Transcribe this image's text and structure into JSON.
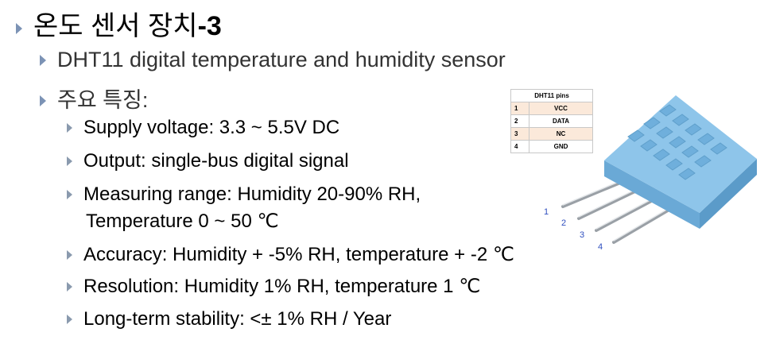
{
  "slide": {
    "title_korean": "온도 센서 장치",
    "title_suffix": "-3",
    "item_model": "DHT11 digital temperature and humidity sensor",
    "item_features": "주요 특징:",
    "bullets": [
      "Supply voltage: 3.3 ~ 5.5V DC",
      "Output: single-bus digital signal",
      "Measuring range: Humidity 20-90% RH,",
      "Temperature 0 ~ 50 ℃",
      "Accuracy: Humidity + -5% RH, temperature + -2 ℃",
      "Resolution: Humidity 1% RH, temperature 1 ℃",
      "Long-term stability: <± 1% RH / Year"
    ]
  },
  "pin_table": {
    "header": "DHT11 pins",
    "rows": [
      {
        "num": "1",
        "name": "VCC"
      },
      {
        "num": "2",
        "name": "DATA"
      },
      {
        "num": "3",
        "name": "NC"
      },
      {
        "num": "4",
        "name": "GND"
      }
    ]
  },
  "sensor_pin_labels": [
    "1",
    "2",
    "3",
    "4"
  ],
  "colors": {
    "bullet": "#7c93b5",
    "sensor_body": "#8ec5ea",
    "pin_label": "#2f4fbf",
    "table_odd_row": "#fbe9da"
  }
}
